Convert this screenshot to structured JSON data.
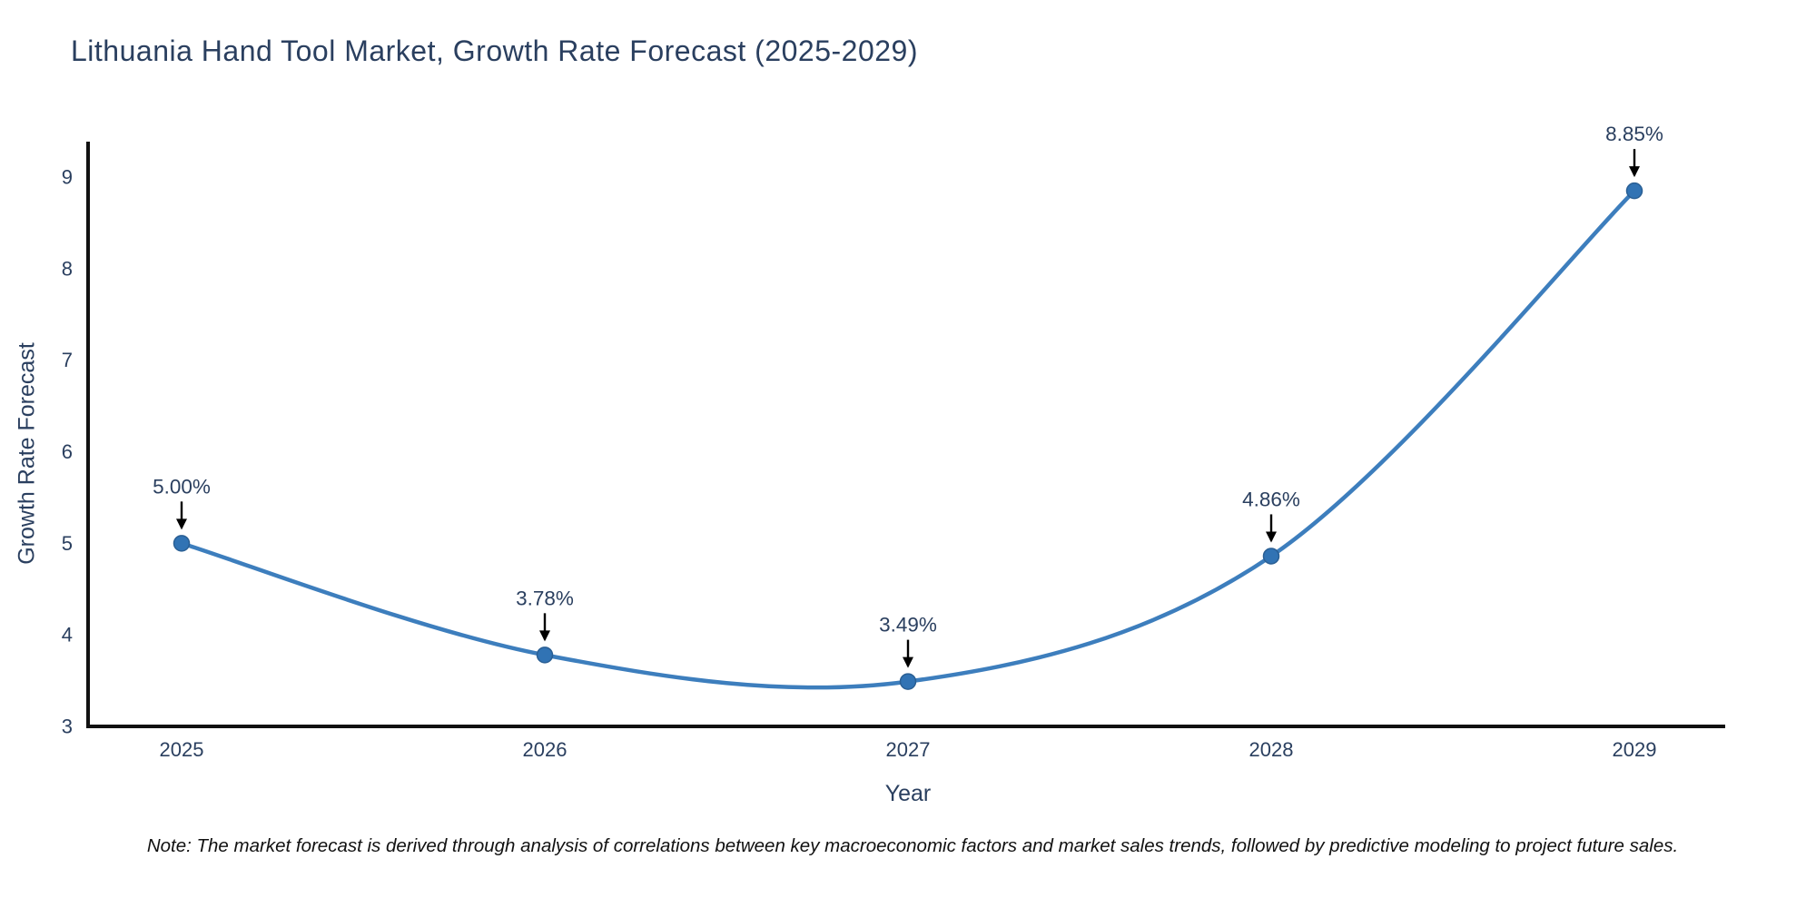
{
  "chart_data": {
    "type": "line",
    "title": "Lithuania Hand Tool Market, Growth Rate Forecast (2025-2029)",
    "xlabel": "Year",
    "ylabel": "Growth Rate Forecast",
    "x": [
      2025,
      2026,
      2027,
      2028,
      2029
    ],
    "x_tick_labels": [
      "2025",
      "2026",
      "2027",
      "2028",
      "2029"
    ],
    "series": [
      {
        "name": "Growth Rate Forecast",
        "values": [
          5.0,
          3.78,
          3.49,
          4.86,
          8.85
        ],
        "point_labels": [
          "5.00%",
          "3.78%",
          "3.49%",
          "4.86%",
          "8.85%"
        ]
      }
    ],
    "ylim": [
      3,
      9
    ],
    "y_ticks": [
      3,
      4,
      5,
      6,
      7,
      8,
      9
    ],
    "line_shape": "spline",
    "grid": "off",
    "legend": "none",
    "annotations_style": "value labels with black down-arrows pointing at each marker",
    "note": "Note: The market forecast is derived through analysis of correlations between key macroeconomic factors and market sales trends, followed by predictive modeling to project future sales.",
    "colors": {
      "line": "#3d7ebd",
      "marker_fill": "#3173b4",
      "marker_edge": "#2a5f94",
      "arrow": "#000000",
      "axis_line": "#111111",
      "text": "#2a3f5f",
      "note_text": "#111111",
      "background": "#ffffff"
    }
  }
}
